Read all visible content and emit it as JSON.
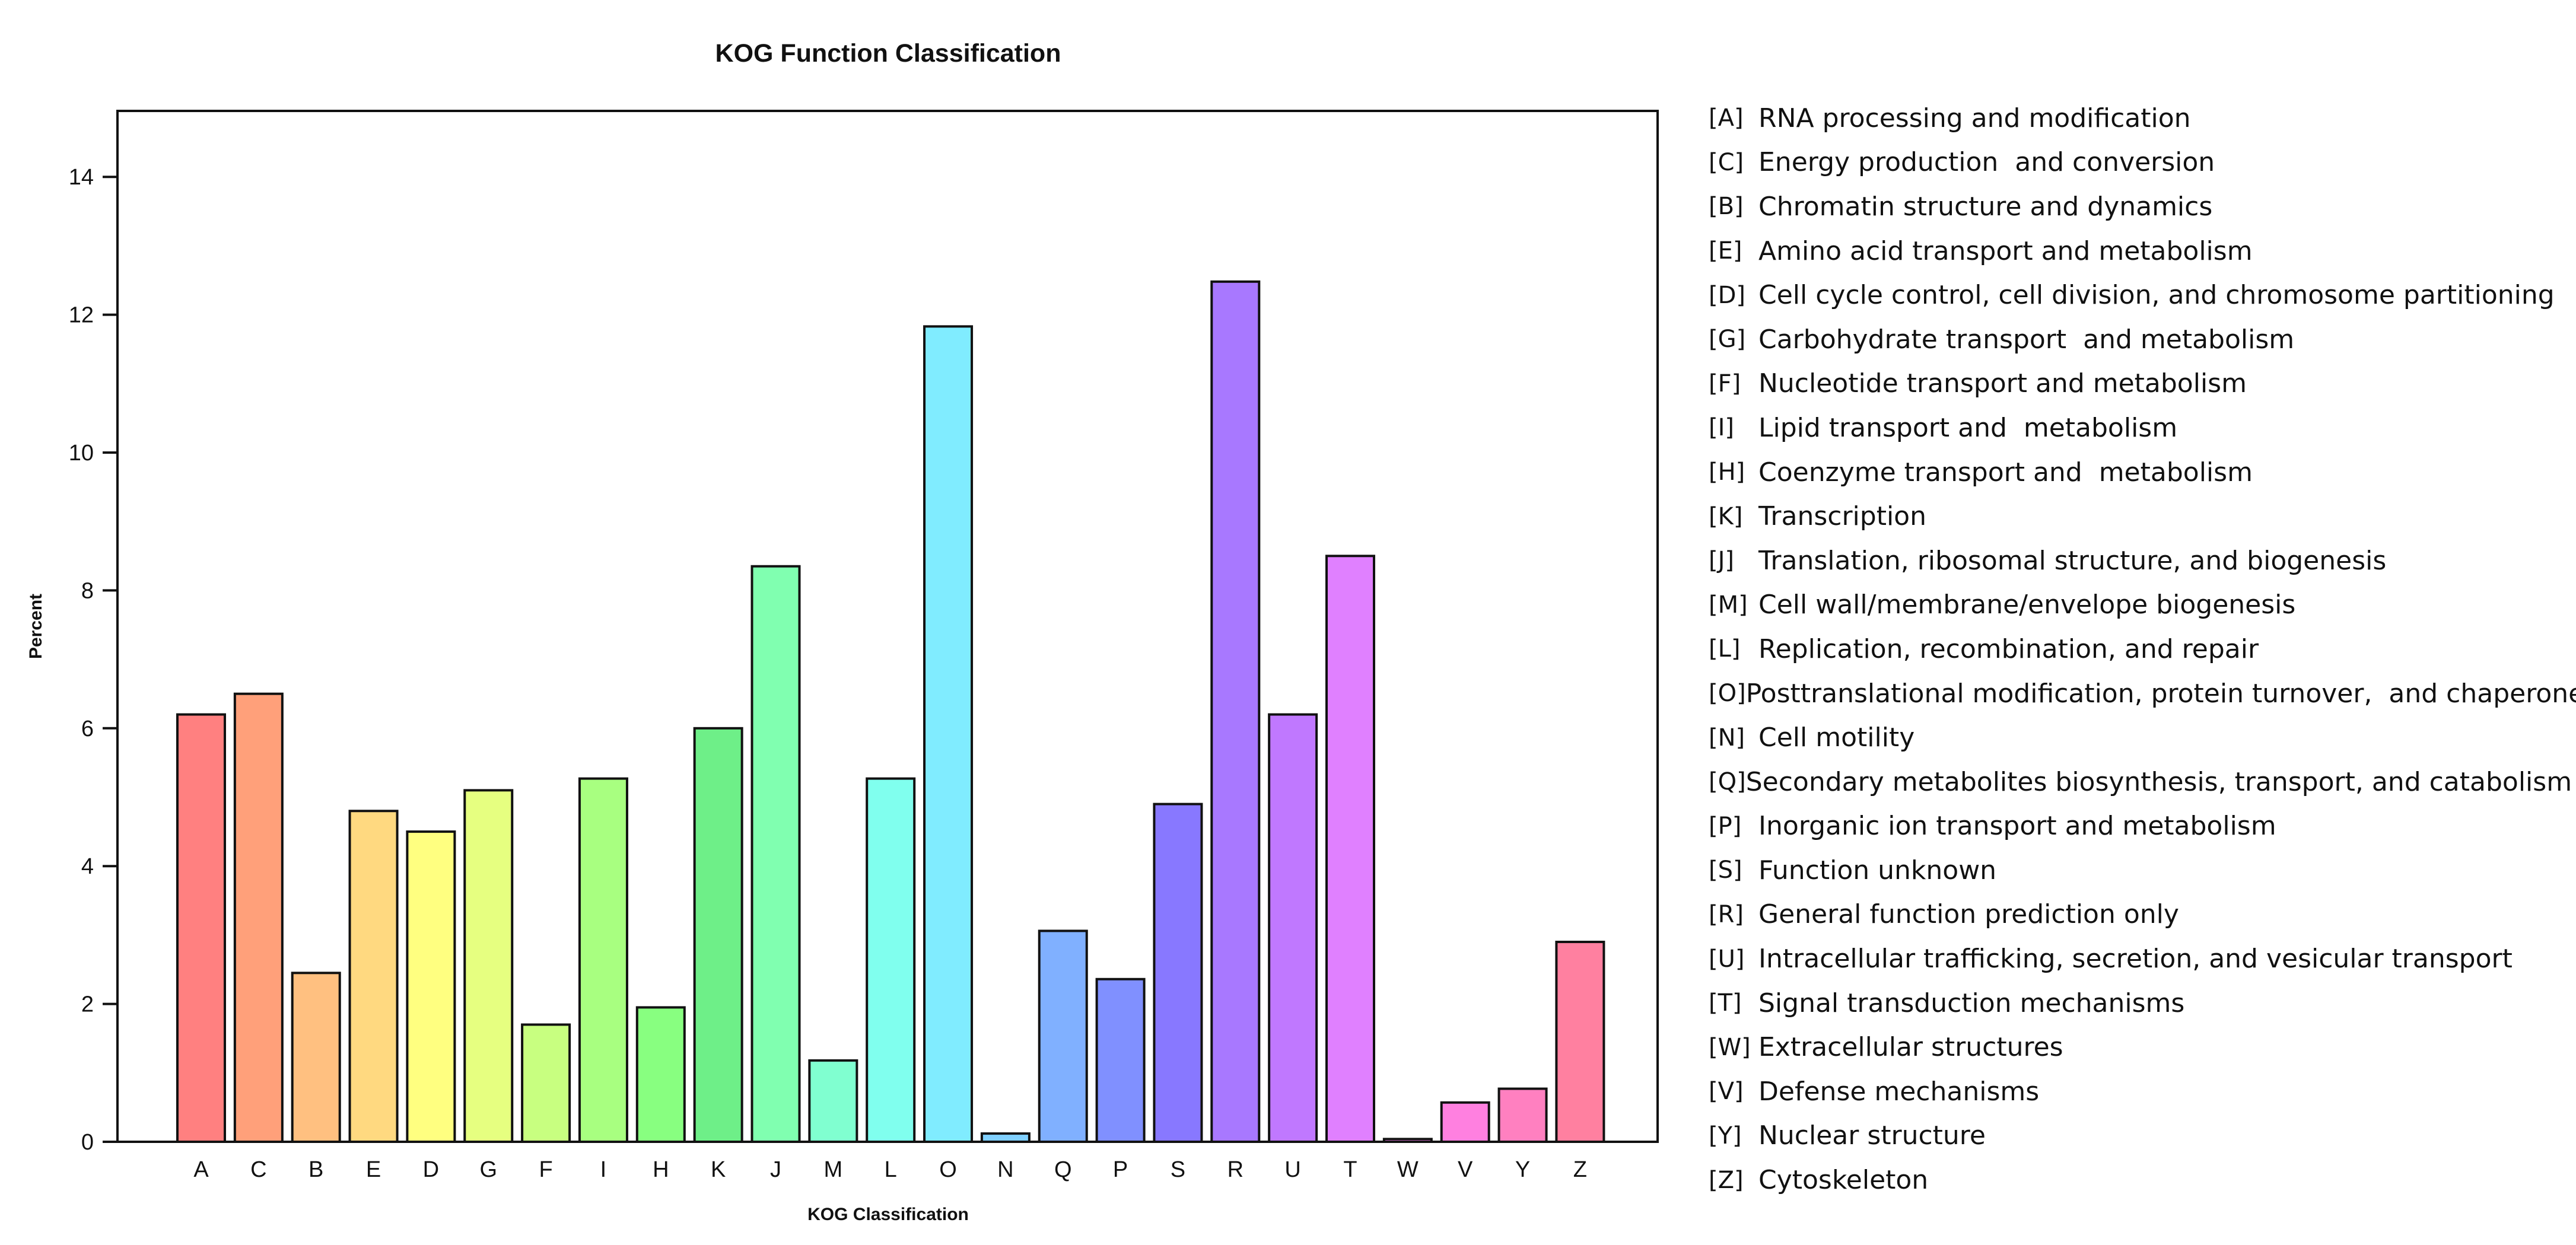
{
  "chart_data": {
    "type": "bar",
    "title": "KOG Function Classification",
    "xlabel": "KOG Classification",
    "ylabel": "Percent",
    "ylim": [
      0,
      15
    ],
    "yticks": [
      0,
      2,
      4,
      6,
      8,
      10,
      12,
      14
    ],
    "categories": [
      "A",
      "C",
      "B",
      "E",
      "D",
      "G",
      "F",
      "I",
      "H",
      "K",
      "J",
      "M",
      "L",
      "O",
      "N",
      "Q",
      "P",
      "S",
      "R",
      "U",
      "T",
      "W",
      "V",
      "Y",
      "Z"
    ],
    "values": [
      6.2,
      6.5,
      2.45,
      4.8,
      4.5,
      5.1,
      1.7,
      5.27,
      1.95,
      6.0,
      8.35,
      1.18,
      5.27,
      11.83,
      0.12,
      3.06,
      2.36,
      4.9,
      12.48,
      6.2,
      8.5,
      0.04,
      0.57,
      0.77,
      2.9
    ],
    "colors": [
      "#ff8080",
      "#ffa07a",
      "#ffc080",
      "#ffd980",
      "#ffff80",
      "#e6ff80",
      "#c8ff80",
      "#a8ff80",
      "#88ff80",
      "#6eef88",
      "#80ffb0",
      "#80ffd0",
      "#80ffee",
      "#80ecff",
      "#80d0ff",
      "#80b0ff",
      "#8090ff",
      "#8878ff",
      "#a878ff",
      "#c078ff",
      "#e080ff",
      "#ff80f8",
      "#ff80e0",
      "#ff80c0",
      "#ff80a0"
    ],
    "legend": [
      {
        "code": "[A]",
        "label": "RNA processing and modification"
      },
      {
        "code": "[C]",
        "label": "Energy production  and conversion"
      },
      {
        "code": "[B]",
        "label": "Chromatin structure and dynamics"
      },
      {
        "code": "[E]",
        "label": "Amino acid transport and metabolism"
      },
      {
        "code": "[D]",
        "label": "Cell cycle control, cell division, and chromosome partitioning"
      },
      {
        "code": "[G]",
        "label": "Carbohydrate transport  and metabolism"
      },
      {
        "code": "[F]",
        "label": "Nucleotide transport and metabolism"
      },
      {
        "code": "[I]",
        "label": "Lipid transport and  metabolism"
      },
      {
        "code": "[H]",
        "label": "Coenzyme transport and  metabolism"
      },
      {
        "code": "[K]",
        "label": "Transcription"
      },
      {
        "code": "[J]",
        "label": "Translation, ribosomal structure, and biogenesis"
      },
      {
        "code": "[M]",
        "label": "Cell wall/membrane/envelope biogenesis"
      },
      {
        "code": "[L]",
        "label": "Replication, recombination, and repair"
      },
      {
        "code": "[O]",
        "label": "Posttranslational modification, protein turnover,  and chaperones"
      },
      {
        "code": "[N]",
        "label": "Cell motility"
      },
      {
        "code": "[Q]",
        "label": "Secondary metabolites biosynthesis, transport, and catabolism"
      },
      {
        "code": "[P]",
        "label": "Inorganic ion transport and metabolism"
      },
      {
        "code": "[S]",
        "label": "Function unknown"
      },
      {
        "code": "[R]",
        "label": "General function prediction only"
      },
      {
        "code": "[U]",
        "label": "Intracellular trafficking, secretion, and vesicular transport"
      },
      {
        "code": "[T]",
        "label": "Signal transduction mechanisms"
      },
      {
        "code": "[W]",
        "label": "Extracellular structures"
      },
      {
        "code": "[V]",
        "label": "Defense mechanisms"
      },
      {
        "code": "[Y]",
        "label": "Nuclear structure"
      },
      {
        "code": "[Z]",
        "label": "Cytoskeleton"
      }
    ]
  }
}
